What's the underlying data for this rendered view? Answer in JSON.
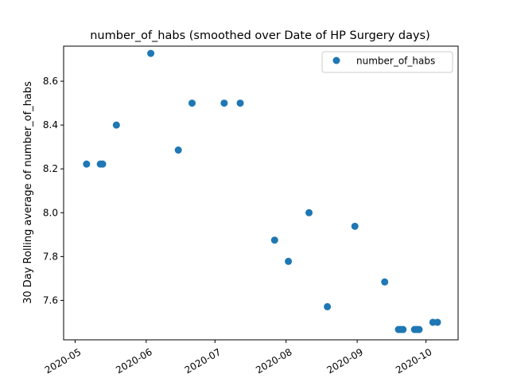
{
  "chart_data": {
    "type": "scatter",
    "title": "number_of_habs (smoothed over Date of HP Surgery days)",
    "xlabel": "",
    "ylabel": "30 Day Rolling average of number_of_habs",
    "x_ticks": [
      "2020-05",
      "2020-06",
      "2020-07",
      "2020-08",
      "2020-09",
      "2020-10"
    ],
    "y_ticks": [
      "7.6",
      "7.8",
      "8.0",
      "8.2",
      "8.4",
      "8.6"
    ],
    "xlim": [
      "2020-04-26",
      "2020-10-15"
    ],
    "ylim": [
      7.42,
      8.76
    ],
    "grid": false,
    "legend_position": "top-right",
    "color": "#1f77b4",
    "series": [
      {
        "name": "number_of_habs",
        "points": [
          {
            "x": "2020-05-06",
            "y": 8.222
          },
          {
            "x": "2020-05-12",
            "y": 8.222
          },
          {
            "x": "2020-05-13",
            "y": 8.222
          },
          {
            "x": "2020-05-19",
            "y": 8.4
          },
          {
            "x": "2020-06-03",
            "y": 8.727
          },
          {
            "x": "2020-06-15",
            "y": 8.286
          },
          {
            "x": "2020-06-21",
            "y": 8.5
          },
          {
            "x": "2020-07-05",
            "y": 8.5
          },
          {
            "x": "2020-07-12",
            "y": 8.5
          },
          {
            "x": "2020-07-27",
            "y": 7.875
          },
          {
            "x": "2020-08-02",
            "y": 7.778
          },
          {
            "x": "2020-08-11",
            "y": 8.0
          },
          {
            "x": "2020-08-19",
            "y": 7.571
          },
          {
            "x": "2020-08-31",
            "y": 7.938
          },
          {
            "x": "2020-09-13",
            "y": 7.684
          },
          {
            "x": "2020-09-19",
            "y": 7.467
          },
          {
            "x": "2020-09-20",
            "y": 7.467
          },
          {
            "x": "2020-09-21",
            "y": 7.467
          },
          {
            "x": "2020-09-26",
            "y": 7.467
          },
          {
            "x": "2020-09-27",
            "y": 7.467
          },
          {
            "x": "2020-09-28",
            "y": 7.467
          },
          {
            "x": "2020-10-04",
            "y": 7.5
          },
          {
            "x": "2020-10-06",
            "y": 7.5
          }
        ]
      }
    ]
  }
}
